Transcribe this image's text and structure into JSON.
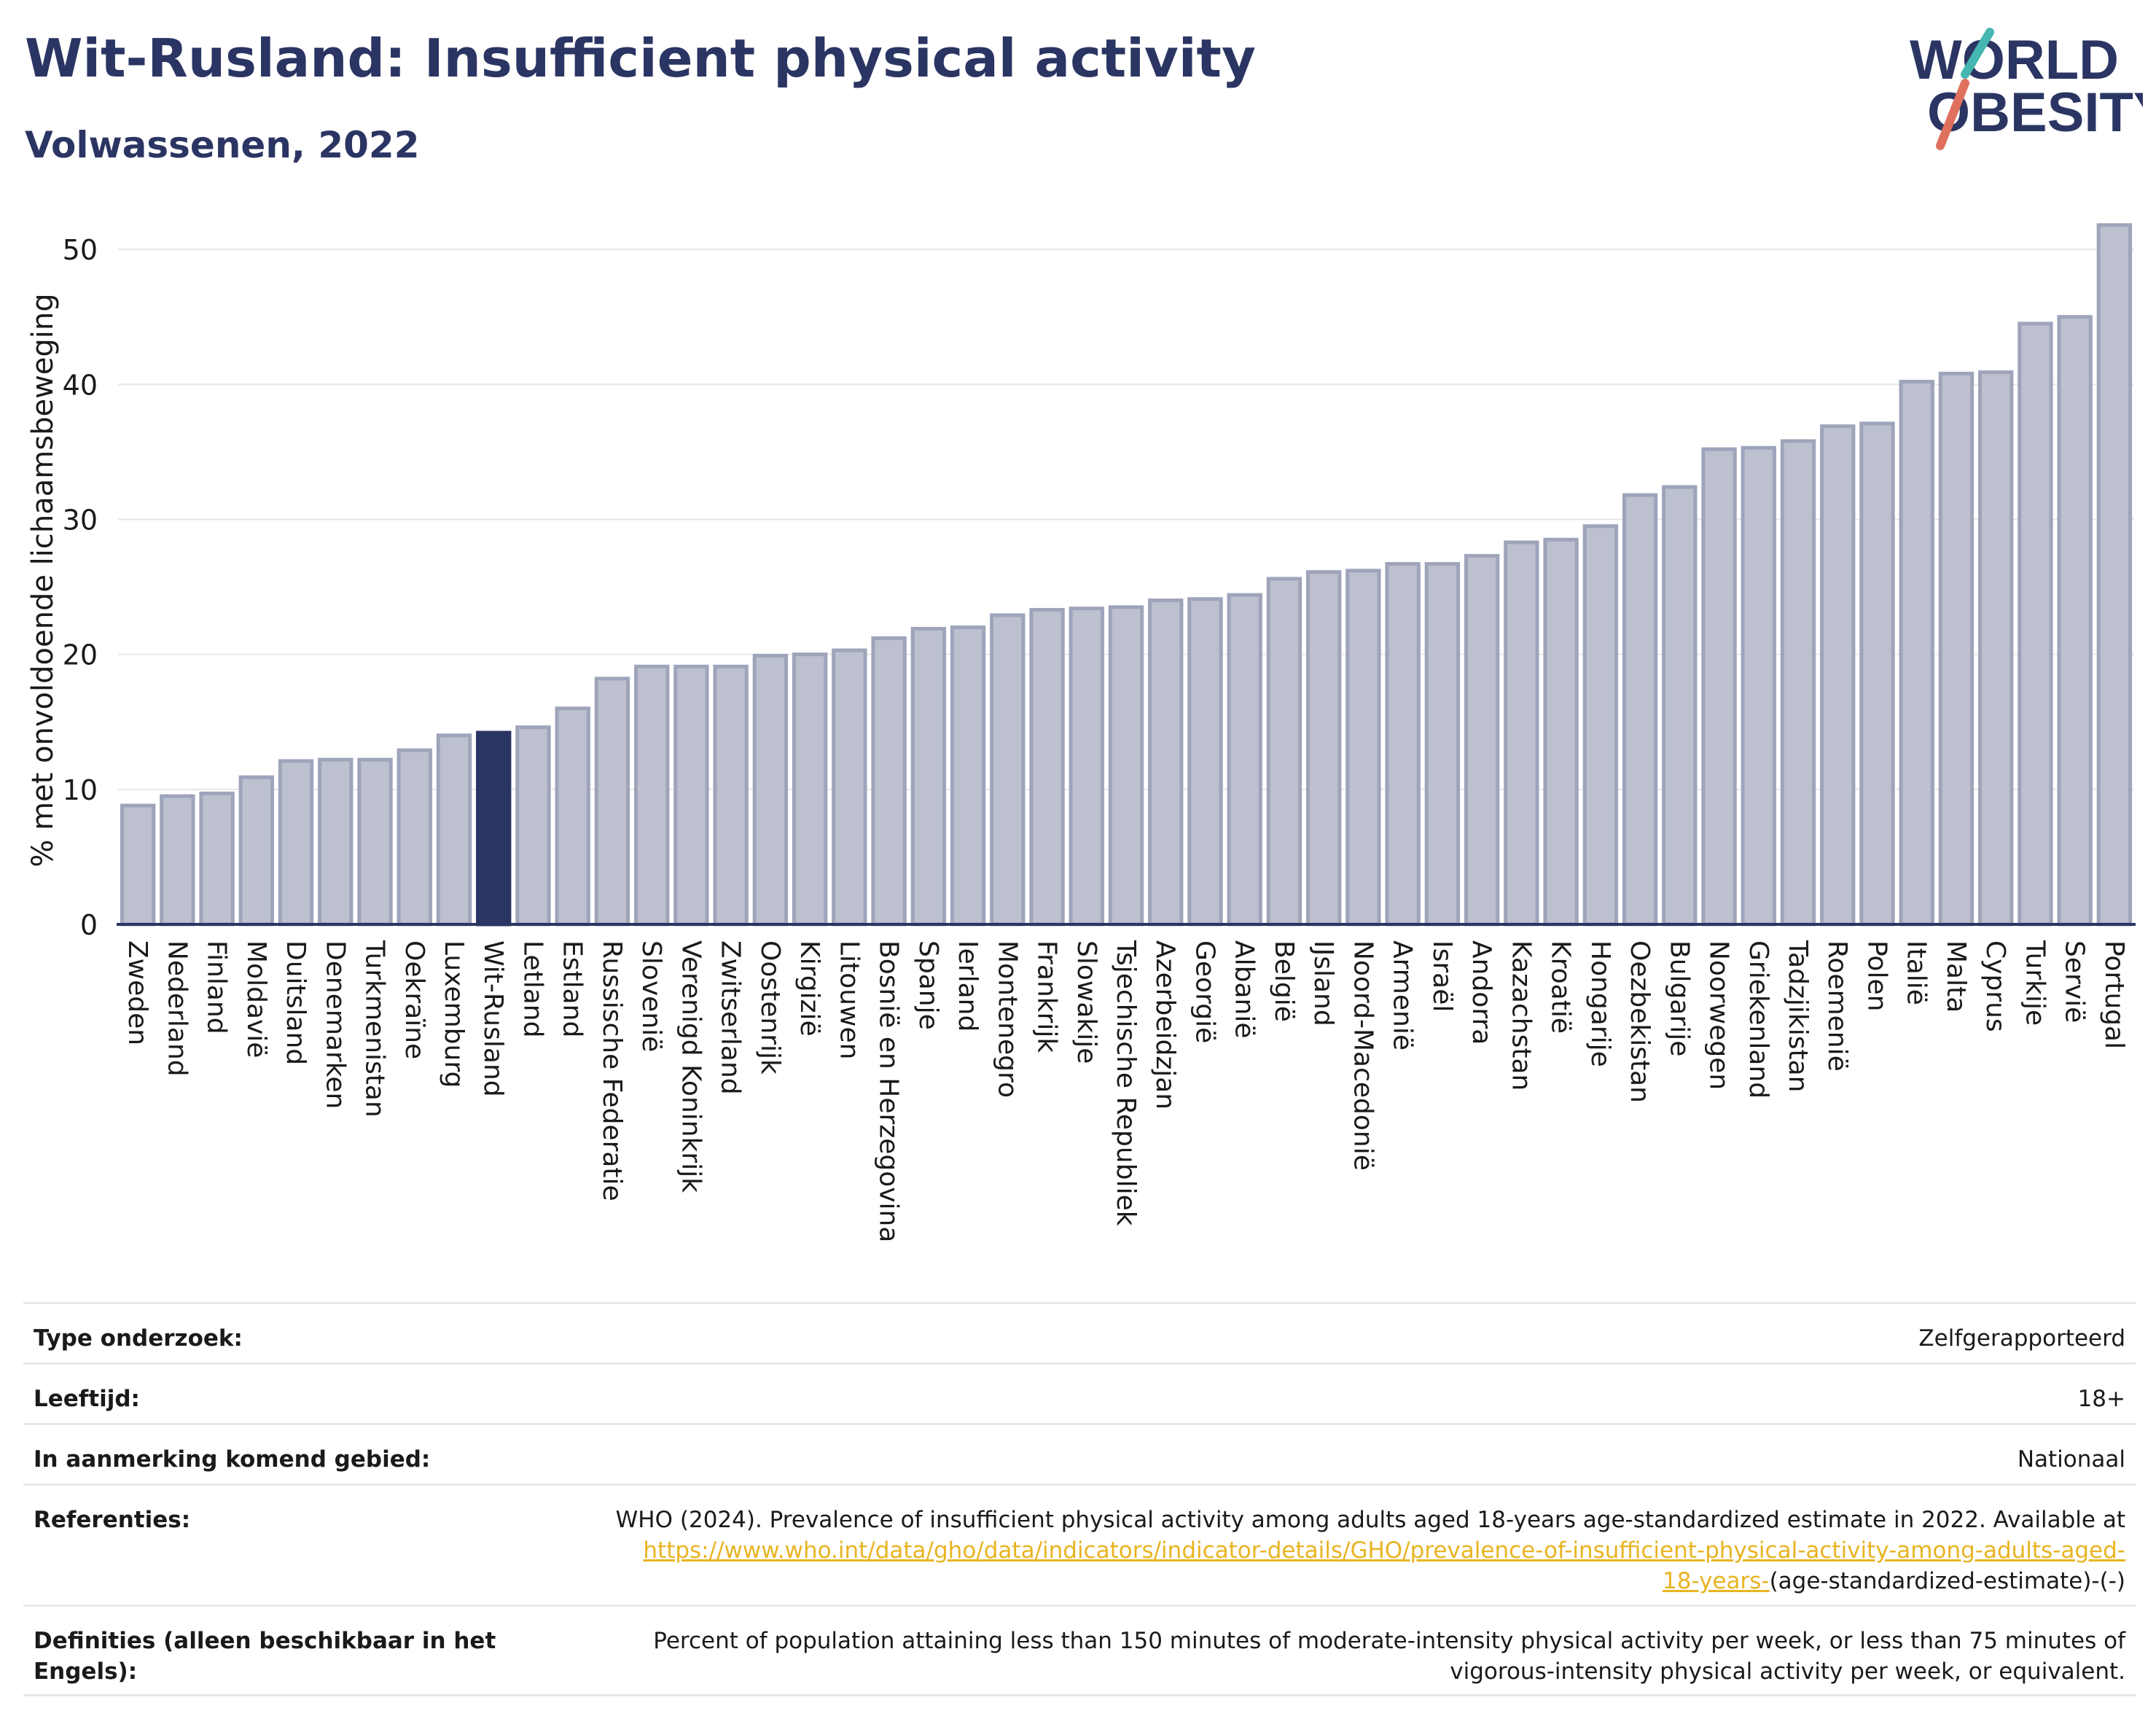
{
  "header": {
    "title": "Wit-Rusland: Insufficient physical activity",
    "subtitle": "Volwassenen, 2022"
  },
  "logo": {
    "line1": "WORLD",
    "line2": "OBESITY"
  },
  "colors": {
    "primary": "#2b3563",
    "bar": "#bcc0cf",
    "bar_edge": "#9ea4ba",
    "accent_teal": "#45b6b0",
    "accent_red": "#e0705e",
    "link": "#e8b422"
  },
  "chart_data": {
    "type": "bar",
    "title": "",
    "xlabel": "",
    "ylabel": "% met onvoldoende lichaamsbeweging",
    "ylim": [
      0,
      54
    ],
    "yticks": [
      0,
      10,
      20,
      30,
      40,
      50
    ],
    "grid": true,
    "highlight": "Wit-Rusland",
    "categories": [
      "Zweden",
      "Nederland",
      "Finland",
      "Moldavië",
      "Duitsland",
      "Denemarken",
      "Turkmenistan",
      "Oekraïne",
      "Luxemburg",
      "Wit-Rusland",
      "Letland",
      "Estland",
      "Russische Federatie",
      "Slovenië",
      "Verenigd Koninkrijk",
      "Zwitserland",
      "Oostenrijk",
      "Kirgizië",
      "Litouwen",
      "Bosnië en Herzegovina",
      "Spanje",
      "Ierland",
      "Montenegro",
      "Frankrijk",
      "Slowakije",
      "Tsjechische Republiek",
      "Azerbeidzjan",
      "Georgië",
      "Albanië",
      "België",
      "IJsland",
      "Noord-Macedonië",
      "Armenië",
      "Israël",
      "Andorra",
      "Kazachstan",
      "Kroatië",
      "Hongarije",
      "Oezbekistan",
      "Bulgarije",
      "Noorwegen",
      "Griekenland",
      "Tadzjikistan",
      "Roemenië",
      "Polen",
      "Italië",
      "Malta",
      "Cyprus",
      "Turkije",
      "Servië",
      "Portugal"
    ],
    "values": [
      8.8,
      9.5,
      9.7,
      10.9,
      12.1,
      12.2,
      12.2,
      12.9,
      14.0,
      14.2,
      14.6,
      16.0,
      18.2,
      19.1,
      19.1,
      19.1,
      19.9,
      20.0,
      20.3,
      21.2,
      21.9,
      22.0,
      22.9,
      23.3,
      23.4,
      23.5,
      24.0,
      24.1,
      24.4,
      25.6,
      26.1,
      26.2,
      26.7,
      26.7,
      27.3,
      28.3,
      28.5,
      29.5,
      31.8,
      32.4,
      35.2,
      35.3,
      35.8,
      36.9,
      37.1,
      40.2,
      40.8,
      40.9,
      44.5,
      45.0,
      51.8
    ]
  },
  "info": {
    "survey_type": {
      "label": "Type onderzoek:",
      "value": "Zelfgerapporteerd"
    },
    "age": {
      "label": "Leeftijd:",
      "value": "18+"
    },
    "area": {
      "label": "In aanmerking komend gebied:",
      "value": "Nationaal"
    },
    "references": {
      "label": "Referenties:",
      "text": "WHO (2024). Prevalence of insufficient physical activity among adults aged 18-years age-standardized estimate in 2022. Available at",
      "link_line1": "https://www.who.int/data/gho/data/indicators/indicator-details/GHO/prevalence-of-insufficient-physical-activity-among-adults-aged-",
      "link_line2": "18-years-",
      "suffix": "(age-standardized-estimate)-(-)"
    },
    "definitions": {
      "label": "Definities (alleen beschikbaar in het Engels):",
      "value": "Percent of population attaining less than 150 minutes of moderate-intensity physical activity per week, or less than 75 minutes of vigorous-intensity physical activity per week, or equivalent."
    }
  }
}
